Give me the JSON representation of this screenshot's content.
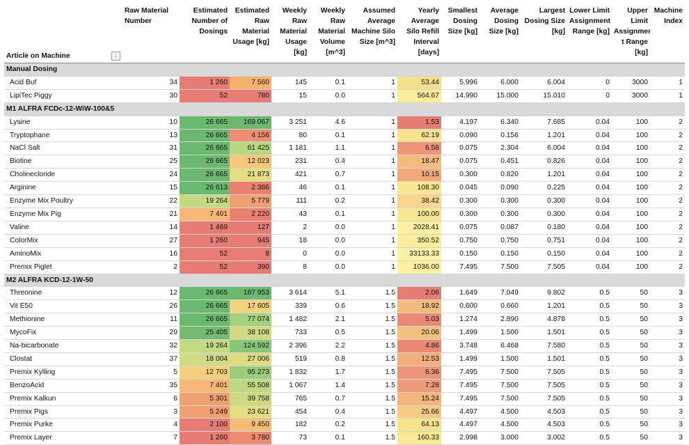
{
  "headers": [
    {
      "key": "article",
      "label": "Article on Machine",
      "align": "left"
    },
    {
      "key": "raw_num",
      "label": "Raw Material Number",
      "align": "ctr"
    },
    {
      "key": "dosings",
      "label": "Estimated Number of Dosings"
    },
    {
      "key": "usage",
      "label": "Estimated Raw Material Usage [kg]"
    },
    {
      "key": "weekly_usage",
      "label": "Weekly Raw Material Usage [kg]"
    },
    {
      "key": "weekly_vol",
      "label": "Weekly Raw Material Volume [m^3]"
    },
    {
      "key": "silo",
      "label": "Assumed Average Machine Silo Size [m^3]"
    },
    {
      "key": "refill",
      "label": "Yearly Average Silo Refill Interval [days]"
    },
    {
      "key": "smallest",
      "label": "Smallest Dosing Size [kg]"
    },
    {
      "key": "average",
      "label": "Average Dosing Size [kg]"
    },
    {
      "key": "largest",
      "label": "Largest Dosing Size [kg]"
    },
    {
      "key": "lower",
      "label": "Lower Limit Assignment Range [kg]"
    },
    {
      "key": "upper",
      "label": "Upper Limit Assignmen t Range [kg]"
    },
    {
      "key": "machine",
      "label": "Machine Index"
    }
  ],
  "filter_icon": "filter-dropdown-icon",
  "groups": [
    {
      "title": "Manual Dosing",
      "rows": [
        {
          "name": "Acid Buf",
          "raw": "34",
          "dos": "1 260",
          "dos_c": "#e67c73",
          "use": "7 560",
          "use_c": "#f6b26b",
          "wk": "145",
          "vol": "0.1",
          "silo": "1",
          "ref": "53.44",
          "ref_c": "#f4e08a",
          "sm": "5.996",
          "av": "6.000",
          "lg": "6.004",
          "lo": "0",
          "up": "3000",
          "mi": "1"
        },
        {
          "name": "LipiTec Piggy",
          "raw": "30",
          "dos": "52",
          "dos_c": "#e67c73",
          "use": "780",
          "use_c": "#e67c73",
          "wk": "15",
          "vol": "0.0",
          "silo": "1",
          "ref": "564.67",
          "ref_c": "#fbed9a",
          "sm": "14.990",
          "av": "15.000",
          "lg": "15.010",
          "lo": "0",
          "up": "3000",
          "mi": "1"
        }
      ]
    },
    {
      "title": "M1 ALFRA FCDc-12-WiW-100&5",
      "rows": [
        {
          "name": "Lysine",
          "raw": "10",
          "dos": "26 665",
          "dos_c": "#6bb86f",
          "use": "169 067",
          "use_c": "#6bb86f",
          "wk": "3 251",
          "vol": "4.6",
          "silo": "1",
          "ref": "1.53",
          "ref_c": "#e67c73",
          "sm": "4.197",
          "av": "6.340",
          "lg": "7.685",
          "lo": "0.04",
          "up": "100",
          "mi": "2"
        },
        {
          "name": "Tryptophane",
          "raw": "13",
          "dos": "26 665",
          "dos_c": "#6bb86f",
          "use": "4 156",
          "use_c": "#ee8d72",
          "wk": "80",
          "vol": "0.1",
          "silo": "1",
          "ref": "62.19",
          "ref_c": "#f6e38c",
          "sm": "0.090",
          "av": "0.156",
          "lg": "1.201",
          "lo": "0.04",
          "up": "100",
          "mi": "2"
        },
        {
          "name": "NaCl Salt",
          "raw": "31",
          "dos": "26 665",
          "dos_c": "#6bb86f",
          "use": "61 425",
          "use_c": "#b9d77f",
          "wk": "1 181",
          "vol": "1.1",
          "silo": "1",
          "ref": "6.58",
          "ref_c": "#ee9478",
          "sm": "0.075",
          "av": "2.304",
          "lg": "6.004",
          "lo": "0.04",
          "up": "100",
          "mi": "2"
        },
        {
          "name": "Biotine",
          "raw": "25",
          "dos": "26 665",
          "dos_c": "#6bb86f",
          "use": "12 023",
          "use_c": "#f8c87a",
          "wk": "231",
          "vol": "0.4",
          "silo": "1",
          "ref": "18.47",
          "ref_c": "#f4bc7c",
          "sm": "0.075",
          "av": "0.451",
          "lg": "0.826",
          "lo": "0.04",
          "up": "100",
          "mi": "2"
        },
        {
          "name": "Cholinecloride",
          "raw": "24",
          "dos": "26 665",
          "dos_c": "#6bb86f",
          "use": "21 873",
          "use_c": "#e6dc80",
          "wk": "421",
          "vol": "0.7",
          "silo": "1",
          "ref": "10.15",
          "ref_c": "#f2a87a",
          "sm": "0.300",
          "av": "0.820",
          "lg": "1.201",
          "lo": "0.04",
          "up": "100",
          "mi": "2"
        },
        {
          "name": "Arginine",
          "raw": "15",
          "dos": "26 613",
          "dos_c": "#6bb86f",
          "use": "2 386",
          "use_c": "#ea8170",
          "wk": "46",
          "vol": "0.1",
          "silo": "1",
          "ref": "108.30",
          "ref_c": "#f8e690",
          "sm": "0.045",
          "av": "0.090",
          "lg": "0.225",
          "lo": "0.04",
          "up": "100",
          "mi": "2"
        },
        {
          "name": "Enzyme Mix Poultry",
          "raw": "22",
          "dos": "19 264",
          "dos_c": "#c4da82",
          "use": "5 779",
          "use_c": "#f0a070",
          "wk": "111",
          "vol": "0.2",
          "silo": "1",
          "ref": "38.42",
          "ref_c": "#f5d68a",
          "sm": "0.300",
          "av": "0.300",
          "lg": "0.300",
          "lo": "0.04",
          "up": "100",
          "mi": "2"
        },
        {
          "name": "Enzyme Mix Pig",
          "raw": "21",
          "dos": "7 401",
          "dos_c": "#f7b877",
          "use": "2 220",
          "use_c": "#ea8170",
          "wk": "43",
          "vol": "0.1",
          "silo": "1",
          "ref": "100.00",
          "ref_c": "#f8e690",
          "sm": "0.300",
          "av": "0.300",
          "lg": "0.300",
          "lo": "0.04",
          "up": "100",
          "mi": "2"
        },
        {
          "name": "Valine",
          "raw": "14",
          "dos": "1 469",
          "dos_c": "#e67c73",
          "use": "127",
          "use_c": "#e67c73",
          "wk": "2",
          "vol": "0.0",
          "silo": "1",
          "ref": "2028.41",
          "ref_c": "#fdf0a0",
          "sm": "0.075",
          "av": "0.087",
          "lg": "0.180",
          "lo": "0.04",
          "up": "100",
          "mi": "2"
        },
        {
          "name": "ColorMix",
          "raw": "27",
          "dos": "1 260",
          "dos_c": "#e67c73",
          "use": "945",
          "use_c": "#e67c73",
          "wk": "18",
          "vol": "0.0",
          "silo": "1",
          "ref": "350.52",
          "ref_c": "#fbed9a",
          "sm": "0.750",
          "av": "0.750",
          "lg": "0.751",
          "lo": "0.04",
          "up": "100",
          "mi": "2"
        },
        {
          "name": "AminoMix",
          "raw": "16",
          "dos": "52",
          "dos_c": "#e67c73",
          "use": "8",
          "use_c": "#e67c73",
          "wk": "0",
          "vol": "0.0",
          "silo": "1",
          "ref": "33133.33",
          "ref_c": "#fff2a6",
          "sm": "0.150",
          "av": "0.150",
          "lg": "0.150",
          "lo": "0.04",
          "up": "100",
          "mi": "2"
        },
        {
          "name": "Premix Piglet",
          "raw": "2",
          "dos": "52",
          "dos_c": "#e67c73",
          "use": "390",
          "use_c": "#e67c73",
          "wk": "8",
          "vol": "0.0",
          "silo": "1",
          "ref": "1036.00",
          "ref_c": "#fdf0a0",
          "sm": "7.495",
          "av": "7.500",
          "lg": "7.505",
          "lo": "0.04",
          "up": "100",
          "mi": "2"
        }
      ]
    },
    {
      "title": "M2 ALFRA KCD-12-1W-50",
      "rows": [
        {
          "name": "Threonine",
          "raw": "12",
          "dos": "26 665",
          "dos_c": "#6bb86f",
          "use": "187 953",
          "use_c": "#6bb86f",
          "wk": "3 614",
          "vol": "5.1",
          "silo": "1.5",
          "ref": "2.06",
          "ref_c": "#e67c73",
          "sm": "1.649",
          "av": "7.049",
          "lg": "9.802",
          "lo": "0.5",
          "up": "50",
          "mi": "3"
        },
        {
          "name": "Vit E50",
          "raw": "26",
          "dos": "26 665",
          "dos_c": "#6bb86f",
          "use": "17 605",
          "use_c": "#f1d27e",
          "wk": "339",
          "vol": "0.6",
          "silo": "1.5",
          "ref": "18.92",
          "ref_c": "#f4bc7c",
          "sm": "0.600",
          "av": "0.660",
          "lg": "1.201",
          "lo": "0.5",
          "up": "50",
          "mi": "3"
        },
        {
          "name": "Methionine",
          "raw": "11",
          "dos": "26 665",
          "dos_c": "#6bb86f",
          "use": "77 074",
          "use_c": "#a5d07c",
          "wk": "1 482",
          "vol": "2.1",
          "silo": "1.5",
          "ref": "5.03",
          "ref_c": "#ea8a76",
          "sm": "1.274",
          "av": "2.890",
          "lg": "4.878",
          "lo": "0.5",
          "up": "50",
          "mi": "3"
        },
        {
          "name": "MycoFix",
          "raw": "29",
          "dos": "25 405",
          "dos_c": "#72bb70",
          "use": "38 108",
          "use_c": "#d3d97f",
          "wk": "733",
          "vol": "0.5",
          "silo": "1.5",
          "ref": "20.06",
          "ref_c": "#f4c07e",
          "sm": "1.499",
          "av": "1.500",
          "lg": "1.501",
          "lo": "0.5",
          "up": "50",
          "mi": "3"
        },
        {
          "name": "Na-bicarbonate",
          "raw": "32",
          "dos": "19 264",
          "dos_c": "#c4da82",
          "use": "124 592",
          "use_c": "#88c777",
          "wk": "2 396",
          "vol": "2.2",
          "silo": "1.5",
          "ref": "4.86",
          "ref_c": "#ea8a76",
          "sm": "3.748",
          "av": "6.468",
          "lg": "7.580",
          "lo": "0.5",
          "up": "50",
          "mi": "3"
        },
        {
          "name": "Clostat",
          "raw": "37",
          "dos": "18 004",
          "dos_c": "#d0dc84",
          "use": "27 006",
          "use_c": "#e0db80",
          "wk": "519",
          "vol": "0.8",
          "silo": "1.5",
          "ref": "12.53",
          "ref_c": "#f2ae7b",
          "sm": "1.499",
          "av": "1.500",
          "lg": "1.501",
          "lo": "0.5",
          "up": "50",
          "mi": "3"
        },
        {
          "name": "Premix Kylling",
          "raw": "5",
          "dos": "12 703",
          "dos_c": "#f5cf7c",
          "use": "95 273",
          "use_c": "#9acc7a",
          "wk": "1 832",
          "vol": "1.7",
          "silo": "1.5",
          "ref": "6.36",
          "ref_c": "#ee9478",
          "sm": "7.495",
          "av": "7.500",
          "lg": "7.505",
          "lo": "0.5",
          "up": "50",
          "mi": "3"
        },
        {
          "name": "BenzoAcid",
          "raw": "35",
          "dos": "7 401",
          "dos_c": "#f7b877",
          "use": "55 508",
          "use_c": "#bfd87f",
          "wk": "1 067",
          "vol": "1.4",
          "silo": "1.5",
          "ref": "7.28",
          "ref_c": "#ef9a79",
          "sm": "7.495",
          "av": "7.500",
          "lg": "7.505",
          "lo": "0.5",
          "up": "50",
          "mi": "3"
        },
        {
          "name": "Premix Kalkun",
          "raw": "6",
          "dos": "5 301",
          "dos_c": "#f0a070",
          "use": "39 758",
          "use_c": "#d1d97f",
          "wk": "765",
          "vol": "0.7",
          "silo": "1.5",
          "ref": "15.24",
          "ref_c": "#f3b57c",
          "sm": "7.495",
          "av": "7.500",
          "lg": "7.505",
          "lo": "0.5",
          "up": "50",
          "mi": "3"
        },
        {
          "name": "Premix Pigs",
          "raw": "3",
          "dos": "5 249",
          "dos_c": "#f0a070",
          "use": "23 621",
          "use_c": "#e6dc80",
          "wk": "454",
          "vol": "0.4",
          "silo": "1.5",
          "ref": "25.66",
          "ref_c": "#f5cb84",
          "sm": "4.497",
          "av": "4.500",
          "lg": "4.503",
          "lo": "0.5",
          "up": "50",
          "mi": "3"
        },
        {
          "name": "Premix Purke",
          "raw": "4",
          "dos": "2 100",
          "dos_c": "#e67c73",
          "use": "9 450",
          "use_c": "#f6bd76",
          "wk": "182",
          "vol": "0.2",
          "silo": "1.5",
          "ref": "64.13",
          "ref_c": "#f6e38c",
          "sm": "4.497",
          "av": "4.500",
          "lg": "4.503",
          "lo": "0.5",
          "up": "50",
          "mi": "3"
        },
        {
          "name": "Premix Layer",
          "raw": "7",
          "dos": "1 260",
          "dos_c": "#e67c73",
          "use": "3 780",
          "use_c": "#ec8a72",
          "wk": "73",
          "vol": "0.1",
          "silo": "1.5",
          "ref": "160.33",
          "ref_c": "#f9e994",
          "sm": "2.998",
          "av": "3.000",
          "lg": "3.002",
          "lo": "0.5",
          "up": "50",
          "mi": "3"
        }
      ]
    }
  ]
}
